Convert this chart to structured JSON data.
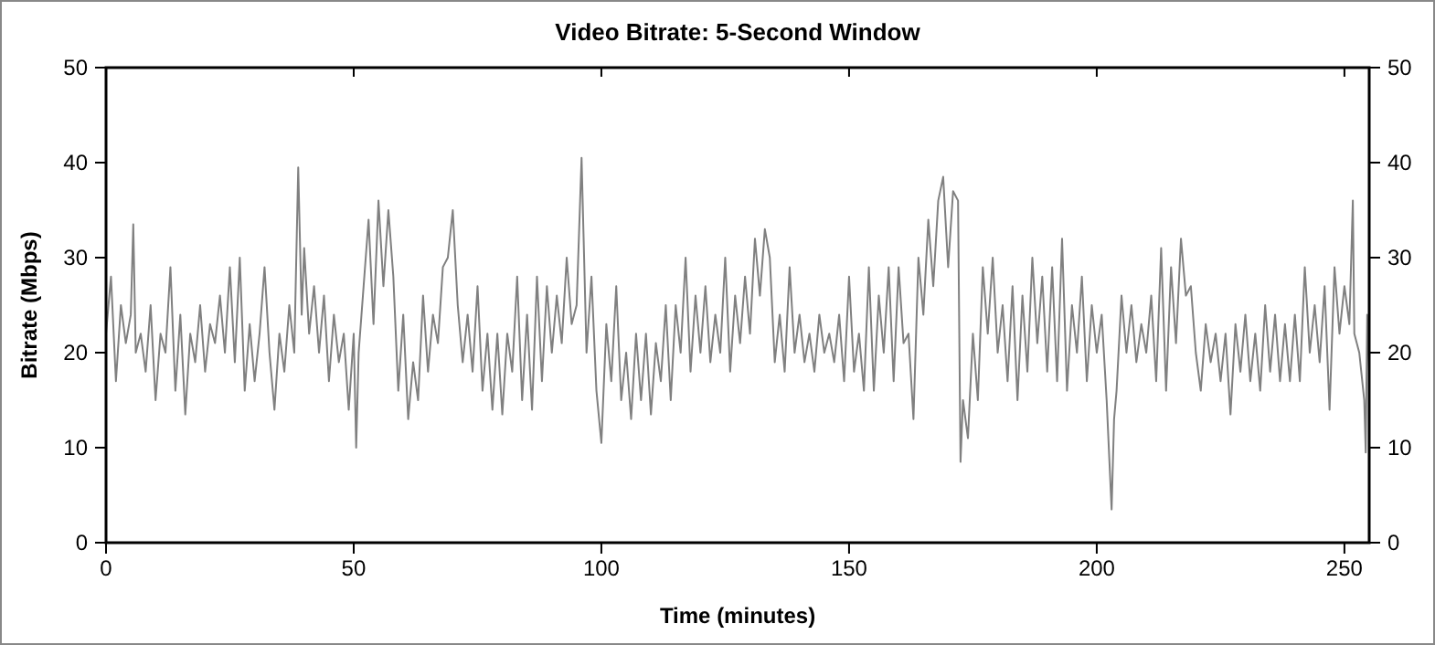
{
  "chart_data": {
    "type": "line",
    "title": "Video Bitrate: 5-Second Window",
    "xlabel": "Time (minutes)",
    "ylabel": "Bitrate (Mbps)",
    "xlim": [
      0,
      255
    ],
    "xticks": [
      0,
      50,
      100,
      150,
      200,
      250
    ],
    "ylim": [
      0,
      50
    ],
    "yticks": [
      0,
      10,
      20,
      30,
      40,
      50
    ],
    "y2lim": [
      0,
      50
    ],
    "y2ticks": [
      0,
      10,
      20,
      30,
      40,
      50
    ],
    "grid": false,
    "series": [
      {
        "color": "#808080",
        "x": [
          0,
          1,
          2,
          3,
          4,
          5,
          5.5,
          6,
          7,
          8,
          9,
          10,
          11,
          12,
          13,
          14,
          15,
          16,
          17,
          18,
          19,
          20,
          21,
          22,
          23,
          24,
          25,
          26,
          27,
          28,
          29,
          30,
          31,
          32,
          33,
          34,
          35,
          36,
          37,
          38,
          38.8,
          39.5,
          40,
          41,
          42,
          43,
          44,
          45,
          46,
          47,
          48,
          49,
          50,
          50.5,
          51,
          52,
          53,
          54,
          55,
          56,
          57,
          58,
          59,
          60,
          61,
          62,
          63,
          64,
          65,
          66,
          67,
          68,
          69,
          70,
          71,
          72,
          73,
          74,
          75,
          76,
          77,
          78,
          79,
          80,
          81,
          82,
          83,
          84,
          85,
          86,
          87,
          88,
          89,
          90,
          91,
          92,
          93,
          94,
          95,
          96,
          97,
          98,
          99,
          100,
          101,
          102,
          103,
          104,
          105,
          106,
          107,
          108,
          109,
          110,
          111,
          112,
          113,
          114,
          115,
          116,
          117,
          118,
          119,
          120,
          121,
          122,
          123,
          124,
          125,
          126,
          127,
          128,
          129,
          130,
          131,
          132,
          133,
          134,
          135,
          136,
          137,
          138,
          139,
          140,
          141,
          142,
          143,
          144,
          145,
          146,
          147,
          148,
          149,
          150,
          151,
          152,
          153,
          154,
          155,
          156,
          157,
          158,
          159,
          160,
          161,
          162,
          163,
          164,
          165,
          166,
          167,
          168,
          169,
          170,
          171,
          172,
          172.5,
          173,
          174,
          175,
          176,
          177,
          178,
          179,
          180,
          181,
          182,
          183,
          184,
          185,
          186,
          187,
          188,
          189,
          190,
          191,
          192,
          193,
          194,
          195,
          196,
          197,
          198,
          199,
          200,
          201,
          202,
          203,
          203.5,
          204,
          205,
          206,
          207,
          208,
          209,
          210,
          211,
          212,
          213,
          214,
          215,
          216,
          217,
          218,
          219,
          220,
          221,
          222,
          223,
          224,
          225,
          226,
          227,
          228,
          229,
          230,
          231,
          232,
          233,
          234,
          235,
          236,
          237,
          238,
          239,
          240,
          241,
          242,
          243,
          244,
          245,
          246,
          247,
          248,
          249,
          250,
          251,
          251.7,
          252,
          253,
          254,
          254.3,
          254.6,
          255
        ],
        "values": [
          22,
          28,
          17,
          25,
          21,
          24,
          33.5,
          20,
          22,
          18,
          25,
          15,
          22,
          20,
          29,
          16,
          24,
          13.5,
          22,
          19,
          25,
          18,
          23,
          21,
          26,
          20,
          29,
          19,
          30,
          16,
          23,
          17,
          22,
          29,
          20,
          14,
          22,
          18,
          25,
          20,
          39.5,
          24,
          31,
          22,
          27,
          20,
          26,
          17,
          24,
          19,
          22,
          14,
          22,
          10,
          20,
          27,
          34,
          23,
          36,
          27,
          35,
          28,
          16,
          24,
          13,
          19,
          15,
          26,
          18,
          24,
          21,
          29,
          30,
          35,
          25,
          19,
          24,
          18,
          27,
          16,
          22,
          14,
          22,
          13.5,
          22,
          18,
          28,
          15,
          24,
          14,
          28,
          17,
          27,
          20,
          26,
          21,
          30,
          23,
          25,
          40.5,
          20,
          28,
          16,
          10.5,
          23,
          17,
          27,
          15,
          20,
          13,
          22,
          15,
          22,
          13.5,
          21,
          17,
          25,
          15,
          25,
          20,
          30,
          18,
          26,
          20,
          27,
          19,
          24,
          20,
          30,
          18,
          26,
          21,
          28,
          22,
          32,
          26,
          33,
          30,
          19,
          24,
          18,
          29,
          20,
          24,
          19,
          22,
          18,
          24,
          20,
          22,
          19,
          24,
          17,
          28,
          18,
          22,
          16,
          29,
          16,
          26,
          20,
          29,
          17,
          29,
          21,
          22,
          13,
          30,
          24,
          34,
          27,
          36,
          38.5,
          29,
          37,
          36,
          8.5,
          15,
          11,
          22,
          15,
          29,
          22,
          30,
          20,
          25,
          17,
          27,
          15,
          26,
          18,
          30,
          21,
          28,
          18,
          29,
          17,
          32,
          16,
          25,
          20,
          28,
          17,
          25,
          20,
          24,
          15,
          3.5,
          13,
          16,
          26,
          20,
          25,
          19,
          23,
          20,
          26,
          17,
          31,
          16,
          29,
          21,
          32,
          26,
          27,
          20,
          16,
          23,
          19,
          22,
          17,
          22,
          13.5,
          23,
          18,
          24,
          17,
          22,
          16,
          25,
          18,
          24,
          17,
          23,
          17,
          24,
          17,
          29,
          20,
          25,
          19,
          27,
          14,
          29,
          22,
          27,
          23,
          36,
          22,
          20,
          15,
          9.5,
          24,
          18
        ]
      }
    ]
  }
}
